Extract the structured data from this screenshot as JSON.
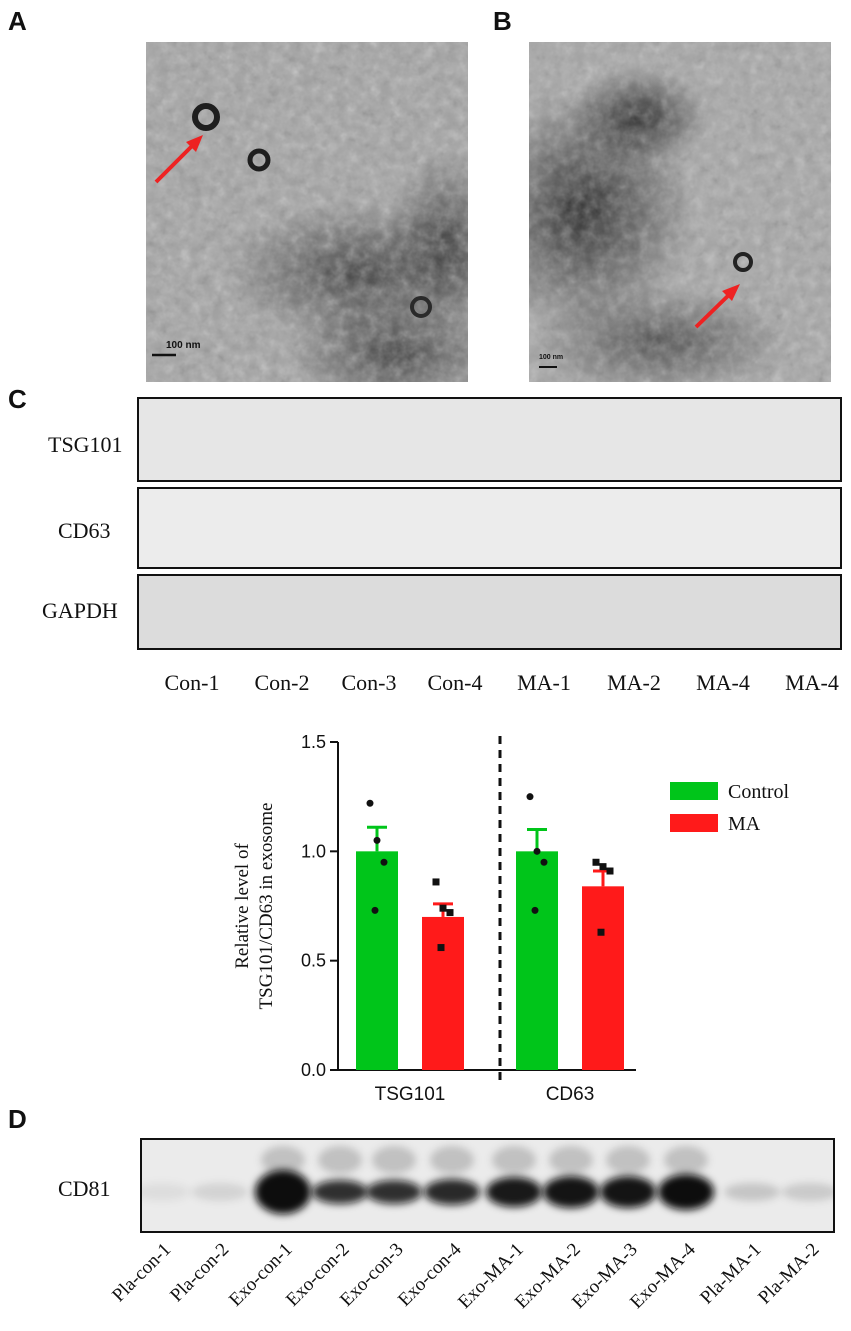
{
  "panels": {
    "a": {
      "letter": "A",
      "scale_bar": "100 nm"
    },
    "b": {
      "letter": "B",
      "scale_bar": "100 nm"
    },
    "c": {
      "letter": "C"
    },
    "d": {
      "letter": "D"
    }
  },
  "blot_c": {
    "rows": [
      "TSG101",
      "CD63",
      "GAPDH"
    ],
    "lanes": [
      "Con-1",
      "Con-2",
      "Con-3",
      "Con-4",
      "MA-1",
      "MA-2",
      "MA-4",
      "MA-4"
    ]
  },
  "blot_d": {
    "row": "CD81",
    "lanes": [
      "Pla-con-1",
      "Pla-con-2",
      "Exo-con-1",
      "Exo-con-2",
      "Exo-con-3",
      "Exo-con-4",
      "Exo-MA-1",
      "Exo-MA-2",
      "Exo-MA-3",
      "Exo-MA-4",
      "Pla-MA-1",
      "Pla-MA-2"
    ]
  },
  "chart_data": {
    "type": "bar",
    "categories": [
      "TSG101",
      "CD63"
    ],
    "ylabel_line1": "Relative level of",
    "ylabel_line2": "TSG101/CD63 in exosome",
    "ylim": [
      0,
      1.5
    ],
    "yticks": [
      "0.0",
      "0.5",
      "1.0",
      "1.5"
    ],
    "legend_position": "top-right",
    "series": [
      {
        "name": "Control",
        "color": "#00c51a",
        "values": [
          1.0,
          1.0
        ],
        "errors": [
          0.11,
          0.1
        ],
        "points": [
          [
            1.22,
            1.05,
            0.95,
            0.73
          ],
          [
            1.25,
            1.0,
            0.95,
            0.73
          ]
        ],
        "marker": "circle"
      },
      {
        "name": "MA",
        "color": "#ff1a1a",
        "values": [
          0.7,
          0.84
        ],
        "errors": [
          0.06,
          0.07
        ],
        "points": [
          [
            0.86,
            0.74,
            0.72,
            0.56
          ],
          [
            0.95,
            0.93,
            0.91,
            0.63
          ]
        ],
        "marker": "square"
      }
    ],
    "divider": "dashed"
  }
}
